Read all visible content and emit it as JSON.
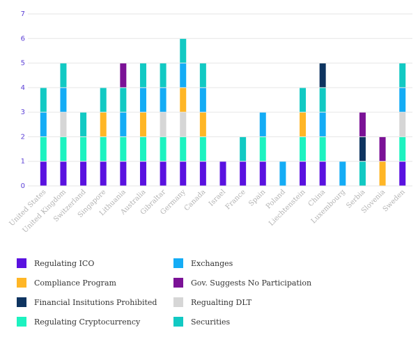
{
  "chart_data": {
    "type": "bar",
    "stacked": true,
    "categories": [
      "United States",
      "United Kingdom",
      "Switzerland",
      "Singapore",
      "Lithuania",
      "Australia",
      "Gibraltar",
      "Germany",
      "Canada",
      "Israel",
      "France",
      "Spain",
      "Poland",
      "Liechtenstein",
      "China",
      "Luxembourg",
      "Serbia",
      "Slovenia",
      "Sweden"
    ],
    "ylim": [
      0,
      7
    ],
    "yticks": [
      0,
      1,
      2,
      3,
      4,
      5,
      6,
      7
    ],
    "grid": true,
    "legend_position": "bottom",
    "series": [
      {
        "name": "Regulating ICO",
        "color": "#5a12e0",
        "values": [
          1,
          1,
          1,
          1,
          1,
          1,
          1,
          1,
          1,
          1,
          1,
          1,
          0,
          1,
          1,
          0,
          0,
          0,
          1
        ]
      },
      {
        "name": "Compliance Program",
        "color": "#ffb626",
        "values": [
          0,
          0,
          0,
          1,
          0,
          1,
          0,
          1,
          1,
          0,
          0,
          0,
          0,
          1,
          0,
          0,
          0,
          1,
          0
        ]
      },
      {
        "name": "Financial Insitutions Prohibited",
        "color": "#0e3460",
        "values": [
          0,
          0,
          0,
          0,
          0,
          0,
          0,
          0,
          0,
          0,
          0,
          0,
          0,
          0,
          1,
          0,
          1,
          0,
          0
        ]
      },
      {
        "name": "Regulating Cryptocurrency",
        "color": "#1df2c0",
        "values": [
          1,
          1,
          1,
          1,
          1,
          1,
          1,
          1,
          1,
          0,
          0,
          1,
          0,
          1,
          1,
          0,
          0,
          0,
          1
        ]
      },
      {
        "name": "Exchanges",
        "color": "#14acf5",
        "values": [
          1,
          1,
          0,
          0,
          1,
          1,
          1,
          1,
          1,
          0,
          0,
          1,
          1,
          0,
          1,
          1,
          0,
          0,
          1
        ]
      },
      {
        "name": "Gov. Suggests No Participation",
        "color": "#7b1296",
        "values": [
          0,
          0,
          0,
          0,
          1,
          0,
          0,
          0,
          0,
          0,
          0,
          0,
          0,
          0,
          0,
          0,
          1,
          1,
          0
        ]
      },
      {
        "name": "Regualting DLT",
        "color": "#d6d6d6",
        "values": [
          0,
          1,
          0,
          0,
          0,
          0,
          1,
          1,
          0,
          0,
          0,
          0,
          0,
          0,
          0,
          0,
          0,
          0,
          1
        ]
      },
      {
        "name": "Securities",
        "color": "#12c9c3",
        "values": [
          1,
          1,
          1,
          1,
          1,
          1,
          1,
          1,
          1,
          0,
          1,
          0,
          0,
          1,
          1,
          0,
          1,
          0,
          1
        ]
      }
    ],
    "stack_order": [
      [
        "Regulating ICO",
        "Regulating Cryptocurrency",
        "Exchanges",
        "Securities"
      ],
      [
        "Regulating ICO",
        "Regulating Cryptocurrency",
        "Regualting DLT",
        "Exchanges",
        "Securities"
      ],
      [
        "Regulating ICO",
        "Regulating Cryptocurrency",
        "Securities"
      ],
      [
        "Regulating ICO",
        "Regulating Cryptocurrency",
        "Compliance Program",
        "Securities"
      ],
      [
        "Regulating ICO",
        "Regulating Cryptocurrency",
        "Exchanges",
        "Securities",
        "Gov. Suggests No Participation"
      ],
      [
        "Regulating ICO",
        "Regulating Cryptocurrency",
        "Compliance Program",
        "Exchanges",
        "Securities"
      ],
      [
        "Regulating ICO",
        "Regulating Cryptocurrency",
        "Regualting DLT",
        "Exchanges",
        "Securities"
      ],
      [
        "Regulating ICO",
        "Regulating Cryptocurrency",
        "Regualting DLT",
        "Compliance Program",
        "Exchanges",
        "Securities"
      ],
      [
        "Regulating ICO",
        "Regulating Cryptocurrency",
        "Compliance Program",
        "Exchanges",
        "Securities"
      ],
      [
        "Regulating ICO"
      ],
      [
        "Regulating ICO",
        "Securities"
      ],
      [
        "Regulating ICO",
        "Regulating Cryptocurrency",
        "Exchanges"
      ],
      [
        "Exchanges"
      ],
      [
        "Regulating ICO",
        "Regulating Cryptocurrency",
        "Compliance Program",
        "Securities"
      ],
      [
        "Regulating ICO",
        "Regulating Cryptocurrency",
        "Exchanges",
        "Securities",
        "Financial Insitutions Prohibited"
      ],
      [
        "Exchanges"
      ],
      [
        "Securities",
        "Financial Insitutions Prohibited",
        "Gov. Suggests No Participation"
      ],
      [
        "Compliance Program",
        "Gov. Suggests No Participation"
      ],
      [
        "Regulating ICO",
        "Regulating Cryptocurrency",
        "Regualting DLT",
        "Exchanges",
        "Securities"
      ]
    ]
  },
  "legend": {
    "items": [
      {
        "label": "Regulating ICO",
        "color": "#5a12e0"
      },
      {
        "label": "Exchanges",
        "color": "#14acf5"
      },
      {
        "label": "Compliance Program",
        "color": "#ffb626"
      },
      {
        "label": "Gov. Suggests No Participation",
        "color": "#7b1296"
      },
      {
        "label": "Financial Insitutions Prohibited",
        "color": "#0e3460"
      },
      {
        "label": "Regualting DLT",
        "color": "#d6d6d6"
      },
      {
        "label": "Regulating Cryptocurrency",
        "color": "#1df2c0"
      },
      {
        "label": "Securities",
        "color": "#12c9c3"
      }
    ]
  }
}
